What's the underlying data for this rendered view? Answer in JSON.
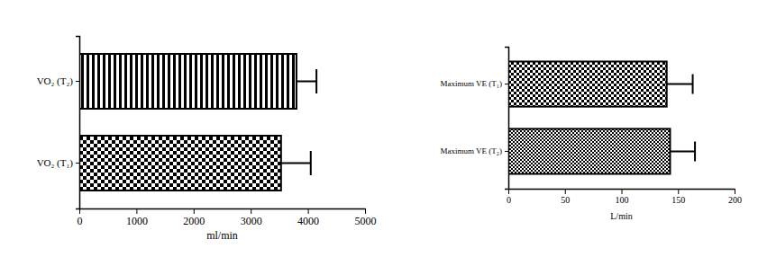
{
  "chart_data": [
    {
      "type": "bar",
      "orientation": "horizontal",
      "color": "#000000",
      "categories": [
        "VO₂ (T₂)",
        "VO₂ (T₁)"
      ],
      "values": [
        3800,
        3530
      ],
      "errors": [
        350,
        520
      ],
      "x_label": "ml/min",
      "xlim": [
        0,
        5000
      ],
      "xticks": [
        0,
        1000,
        2000,
        3000,
        4000,
        5000
      ],
      "grid": false
    },
    {
      "type": "bar",
      "orientation": "horizontal",
      "color": "#000000",
      "categories": [
        "Maximum VE  (T₁)",
        "Maximum VE  (T₂)"
      ],
      "values": [
        140,
        143
      ],
      "errors": [
        23,
        22
      ],
      "x_label": "L/min",
      "xlim": [
        0,
        200
      ],
      "xticks": [
        0,
        50,
        100,
        150,
        200
      ],
      "grid": false
    }
  ]
}
